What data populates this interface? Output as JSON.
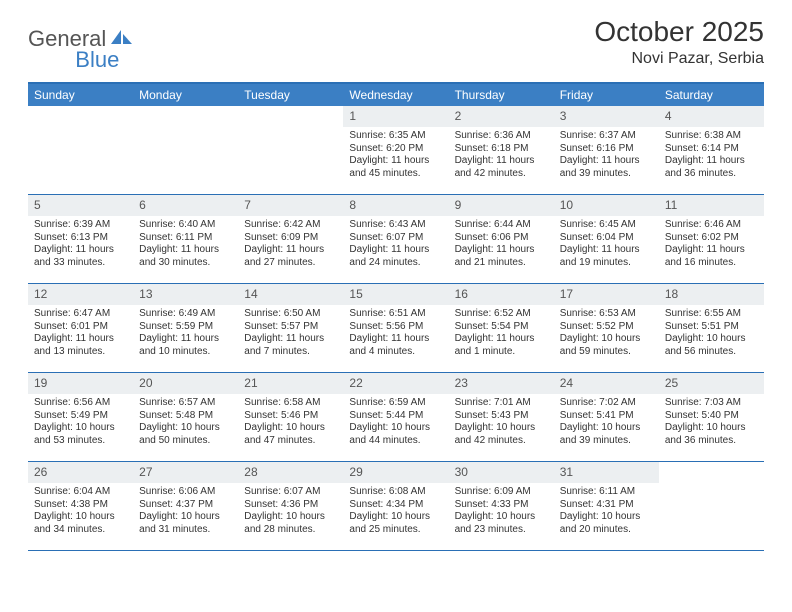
{
  "logo": {
    "part1": "General",
    "part2": "Blue"
  },
  "title": "October 2025",
  "location": "Novi Pazar, Serbia",
  "colors": {
    "header_bg": "#3b7fc4",
    "header_text": "#ffffff",
    "border": "#2a6fb5",
    "numrow_bg": "#eceff1",
    "text": "#333333",
    "logo_gray": "#555555",
    "logo_blue": "#3b7fc4",
    "background": "#ffffff"
  },
  "day_names": [
    "Sunday",
    "Monday",
    "Tuesday",
    "Wednesday",
    "Thursday",
    "Friday",
    "Saturday"
  ],
  "weeks": [
    [
      {
        "n": "",
        "sr": "",
        "ss": "",
        "dl": ""
      },
      {
        "n": "",
        "sr": "",
        "ss": "",
        "dl": ""
      },
      {
        "n": "",
        "sr": "",
        "ss": "",
        "dl": ""
      },
      {
        "n": "1",
        "sr": "Sunrise: 6:35 AM",
        "ss": "Sunset: 6:20 PM",
        "dl": "Daylight: 11 hours and 45 minutes."
      },
      {
        "n": "2",
        "sr": "Sunrise: 6:36 AM",
        "ss": "Sunset: 6:18 PM",
        "dl": "Daylight: 11 hours and 42 minutes."
      },
      {
        "n": "3",
        "sr": "Sunrise: 6:37 AM",
        "ss": "Sunset: 6:16 PM",
        "dl": "Daylight: 11 hours and 39 minutes."
      },
      {
        "n": "4",
        "sr": "Sunrise: 6:38 AM",
        "ss": "Sunset: 6:14 PM",
        "dl": "Daylight: 11 hours and 36 minutes."
      }
    ],
    [
      {
        "n": "5",
        "sr": "Sunrise: 6:39 AM",
        "ss": "Sunset: 6:13 PM",
        "dl": "Daylight: 11 hours and 33 minutes."
      },
      {
        "n": "6",
        "sr": "Sunrise: 6:40 AM",
        "ss": "Sunset: 6:11 PM",
        "dl": "Daylight: 11 hours and 30 minutes."
      },
      {
        "n": "7",
        "sr": "Sunrise: 6:42 AM",
        "ss": "Sunset: 6:09 PM",
        "dl": "Daylight: 11 hours and 27 minutes."
      },
      {
        "n": "8",
        "sr": "Sunrise: 6:43 AM",
        "ss": "Sunset: 6:07 PM",
        "dl": "Daylight: 11 hours and 24 minutes."
      },
      {
        "n": "9",
        "sr": "Sunrise: 6:44 AM",
        "ss": "Sunset: 6:06 PM",
        "dl": "Daylight: 11 hours and 21 minutes."
      },
      {
        "n": "10",
        "sr": "Sunrise: 6:45 AM",
        "ss": "Sunset: 6:04 PM",
        "dl": "Daylight: 11 hours and 19 minutes."
      },
      {
        "n": "11",
        "sr": "Sunrise: 6:46 AM",
        "ss": "Sunset: 6:02 PM",
        "dl": "Daylight: 11 hours and 16 minutes."
      }
    ],
    [
      {
        "n": "12",
        "sr": "Sunrise: 6:47 AM",
        "ss": "Sunset: 6:01 PM",
        "dl": "Daylight: 11 hours and 13 minutes."
      },
      {
        "n": "13",
        "sr": "Sunrise: 6:49 AM",
        "ss": "Sunset: 5:59 PM",
        "dl": "Daylight: 11 hours and 10 minutes."
      },
      {
        "n": "14",
        "sr": "Sunrise: 6:50 AM",
        "ss": "Sunset: 5:57 PM",
        "dl": "Daylight: 11 hours and 7 minutes."
      },
      {
        "n": "15",
        "sr": "Sunrise: 6:51 AM",
        "ss": "Sunset: 5:56 PM",
        "dl": "Daylight: 11 hours and 4 minutes."
      },
      {
        "n": "16",
        "sr": "Sunrise: 6:52 AM",
        "ss": "Sunset: 5:54 PM",
        "dl": "Daylight: 11 hours and 1 minute."
      },
      {
        "n": "17",
        "sr": "Sunrise: 6:53 AM",
        "ss": "Sunset: 5:52 PM",
        "dl": "Daylight: 10 hours and 59 minutes."
      },
      {
        "n": "18",
        "sr": "Sunrise: 6:55 AM",
        "ss": "Sunset: 5:51 PM",
        "dl": "Daylight: 10 hours and 56 minutes."
      }
    ],
    [
      {
        "n": "19",
        "sr": "Sunrise: 6:56 AM",
        "ss": "Sunset: 5:49 PM",
        "dl": "Daylight: 10 hours and 53 minutes."
      },
      {
        "n": "20",
        "sr": "Sunrise: 6:57 AM",
        "ss": "Sunset: 5:48 PM",
        "dl": "Daylight: 10 hours and 50 minutes."
      },
      {
        "n": "21",
        "sr": "Sunrise: 6:58 AM",
        "ss": "Sunset: 5:46 PM",
        "dl": "Daylight: 10 hours and 47 minutes."
      },
      {
        "n": "22",
        "sr": "Sunrise: 6:59 AM",
        "ss": "Sunset: 5:44 PM",
        "dl": "Daylight: 10 hours and 44 minutes."
      },
      {
        "n": "23",
        "sr": "Sunrise: 7:01 AM",
        "ss": "Sunset: 5:43 PM",
        "dl": "Daylight: 10 hours and 42 minutes."
      },
      {
        "n": "24",
        "sr": "Sunrise: 7:02 AM",
        "ss": "Sunset: 5:41 PM",
        "dl": "Daylight: 10 hours and 39 minutes."
      },
      {
        "n": "25",
        "sr": "Sunrise: 7:03 AM",
        "ss": "Sunset: 5:40 PM",
        "dl": "Daylight: 10 hours and 36 minutes."
      }
    ],
    [
      {
        "n": "26",
        "sr": "Sunrise: 6:04 AM",
        "ss": "Sunset: 4:38 PM",
        "dl": "Daylight: 10 hours and 34 minutes."
      },
      {
        "n": "27",
        "sr": "Sunrise: 6:06 AM",
        "ss": "Sunset: 4:37 PM",
        "dl": "Daylight: 10 hours and 31 minutes."
      },
      {
        "n": "28",
        "sr": "Sunrise: 6:07 AM",
        "ss": "Sunset: 4:36 PM",
        "dl": "Daylight: 10 hours and 28 minutes."
      },
      {
        "n": "29",
        "sr": "Sunrise: 6:08 AM",
        "ss": "Sunset: 4:34 PM",
        "dl": "Daylight: 10 hours and 25 minutes."
      },
      {
        "n": "30",
        "sr": "Sunrise: 6:09 AM",
        "ss": "Sunset: 4:33 PM",
        "dl": "Daylight: 10 hours and 23 minutes."
      },
      {
        "n": "31",
        "sr": "Sunrise: 6:11 AM",
        "ss": "Sunset: 4:31 PM",
        "dl": "Daylight: 10 hours and 20 minutes."
      },
      {
        "n": "",
        "sr": "",
        "ss": "",
        "dl": ""
      }
    ]
  ]
}
